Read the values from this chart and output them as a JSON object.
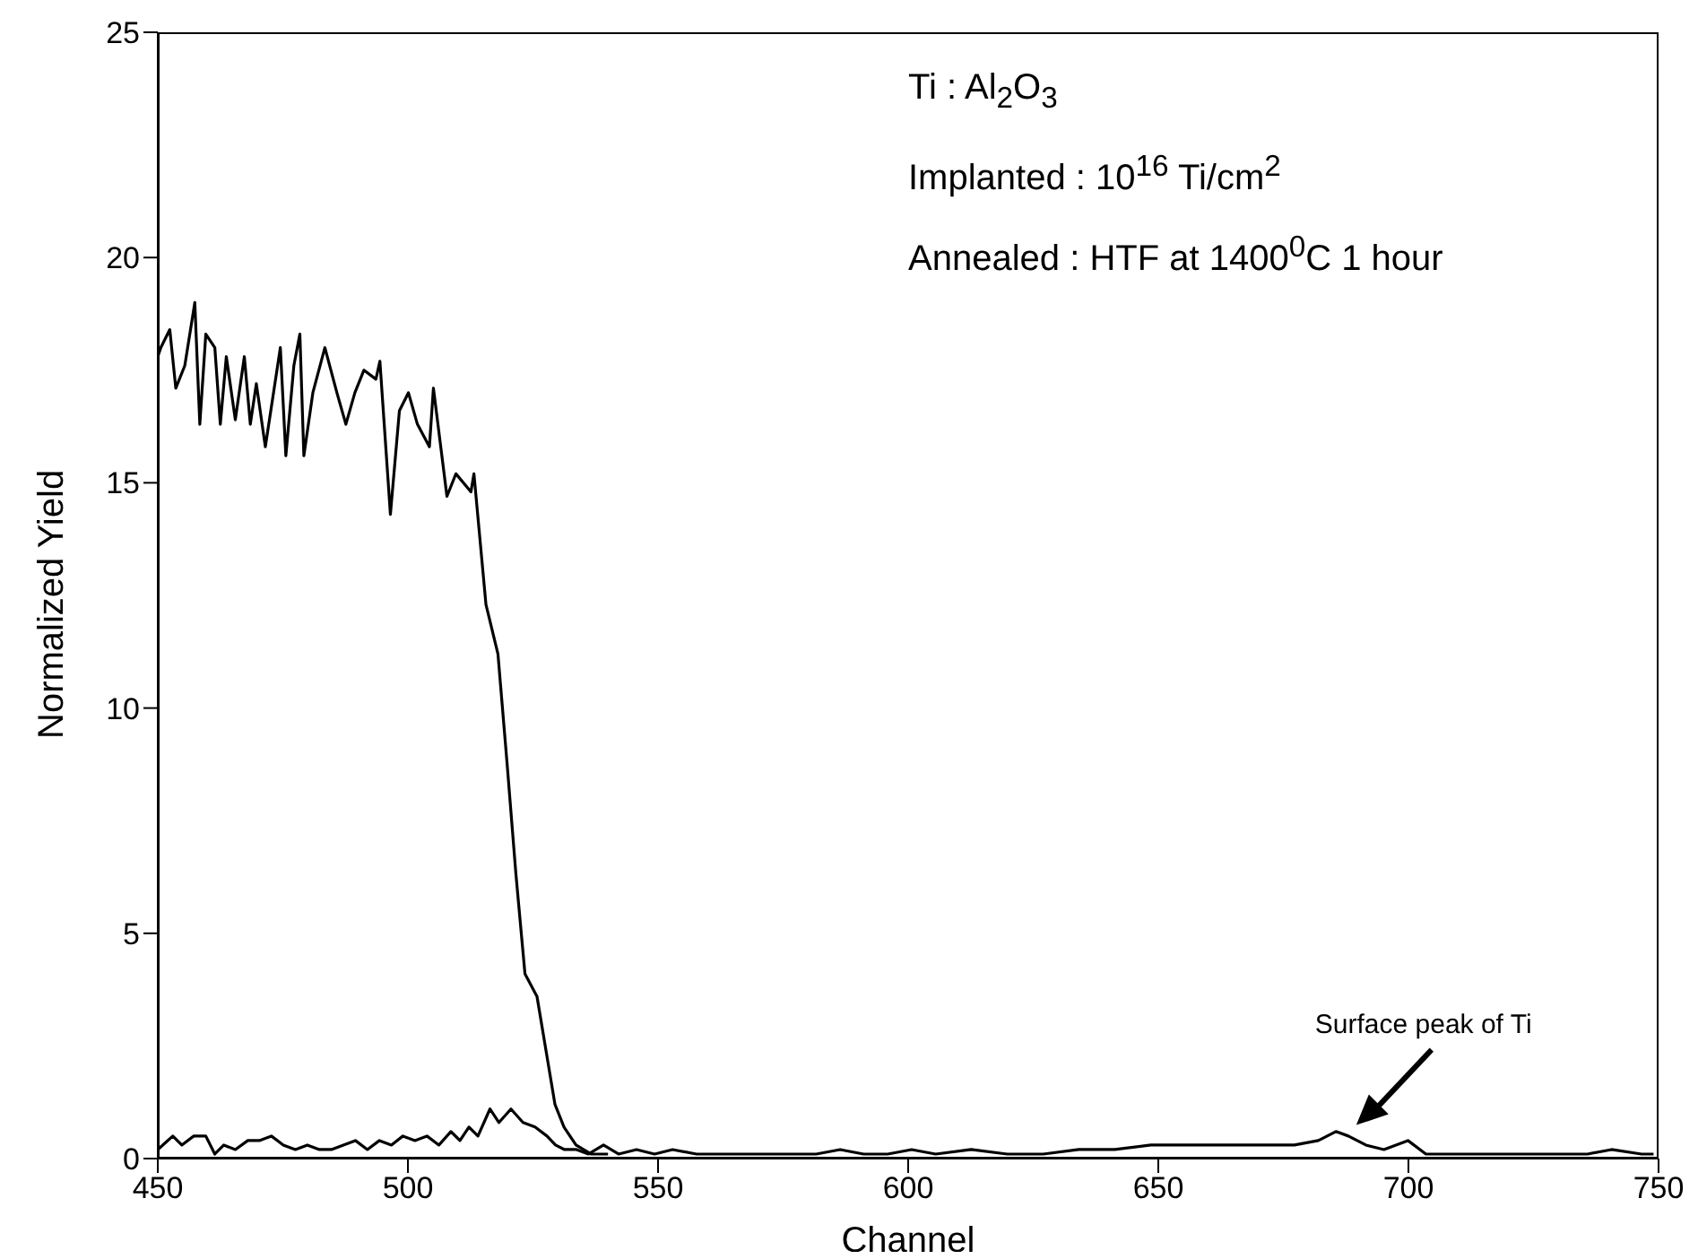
{
  "chart_data": {
    "type": "line",
    "xlabel": "Channel",
    "ylabel": "Normalized Yield",
    "xlim": [
      450,
      750
    ],
    "xticks": [
      450,
      500,
      550,
      600,
      650,
      700,
      750
    ],
    "ylim": [
      0,
      25
    ],
    "yticks": [
      0,
      5,
      10,
      15,
      20,
      25
    ],
    "series": [
      {
        "color": "#000000",
        "x": [
          450,
          450.6,
          452.4,
          453.6,
          455.4,
          457.4,
          458.4,
          459.6,
          461.4,
          462.5,
          463.7,
          465.5,
          467.3,
          468.5,
          469.7,
          471.5,
          474.5,
          475.6,
          477.2,
          478.4,
          479.2,
          481,
          483.4,
          485.8,
          487.6,
          489.4,
          491.2,
          493.6,
          494.4,
          496.5,
          498.3,
          500.1,
          501.9,
          504.3,
          505.1,
          507.8,
          509.6,
          512.6,
          513.2,
          515.6,
          518,
          519.8,
          521.6,
          523.4,
          525.8,
          528.2,
          529.4,
          531.2,
          533.6,
          536.6,
          540
        ],
        "values": [
          17.8,
          18.0,
          18.4,
          17.1,
          17.6,
          19.0,
          16.3,
          18.3,
          18.0,
          16.3,
          17.8,
          16.4,
          17.8,
          16.3,
          17.2,
          15.8,
          18.0,
          15.6,
          17.6,
          18.3,
          15.6,
          17.0,
          18.0,
          17.0,
          16.3,
          17.0,
          17.5,
          17.3,
          17.7,
          14.3,
          16.6,
          17.0,
          16.3,
          15.8,
          17.1,
          14.7,
          15.2,
          14.8,
          15.2,
          12.3,
          11.2,
          8.8,
          6.3,
          4.1,
          3.6,
          2.0,
          1.2,
          0.7,
          0.3,
          0.1,
          0.1
        ]
      },
      {
        "color": "#000000",
        "x": [
          450,
          453,
          454.8,
          457.2,
          459.6,
          461.4,
          463.2,
          465.5,
          468,
          470.3,
          472.7,
          475.1,
          477.5,
          479.9,
          482.3,
          484.7,
          487.1,
          489.5,
          491.9,
          494.3,
          496.7,
          499,
          501.4,
          503.8,
          506.2,
          508.6,
          510.4,
          512.2,
          514,
          516.4,
          518.2,
          520.6,
          523,
          525.4,
          527.8,
          529.5,
          531.3,
          533.7,
          536.1,
          539.1,
          542.1,
          545.7,
          549.3,
          552.9,
          557.7,
          562.4,
          567.2,
          572,
          576.8,
          581.6,
          586.4,
          591.1,
          595.9,
          600.7,
          605.5,
          612.6,
          619.8,
          627,
          634.1,
          641.3,
          648.5,
          655.6,
          662.8,
          670,
          677.2,
          682,
          685.5,
          688,
          691.5,
          695.1,
          699.9,
          703.5,
          709.5,
          715.4,
          722.6,
          729.8,
          735.8,
          740.6,
          746.6,
          749
        ],
        "values": [
          0.2,
          0.5,
          0.3,
          0.5,
          0.5,
          0.1,
          0.3,
          0.2,
          0.4,
          0.4,
          0.5,
          0.3,
          0.2,
          0.3,
          0.2,
          0.2,
          0.3,
          0.4,
          0.2,
          0.4,
          0.3,
          0.5,
          0.4,
          0.5,
          0.3,
          0.6,
          0.4,
          0.7,
          0.5,
          1.1,
          0.8,
          1.1,
          0.8,
          0.7,
          0.5,
          0.3,
          0.2,
          0.2,
          0.1,
          0.3,
          0.1,
          0.2,
          0.1,
          0.2,
          0.1,
          0.1,
          0.1,
          0.1,
          0.1,
          0.1,
          0.2,
          0.1,
          0.1,
          0.2,
          0.1,
          0.2,
          0.1,
          0.1,
          0.2,
          0.2,
          0.3,
          0.3,
          0.3,
          0.3,
          0.3,
          0.4,
          0.6,
          0.5,
          0.3,
          0.2,
          0.4,
          0.1,
          0.1,
          0.1,
          0.1,
          0.1,
          0.1,
          0.2,
          0.1,
          0.1
        ]
      }
    ],
    "annotations": [
      "Ti : Al$_{2}$O$_{3}$",
      "Implanted : 10$^{16}$ Ti/cm$^{2}$",
      "Annealed : HTF at 1400$^{0}$C  1 hour",
      "Surface peak of Ti"
    ]
  }
}
